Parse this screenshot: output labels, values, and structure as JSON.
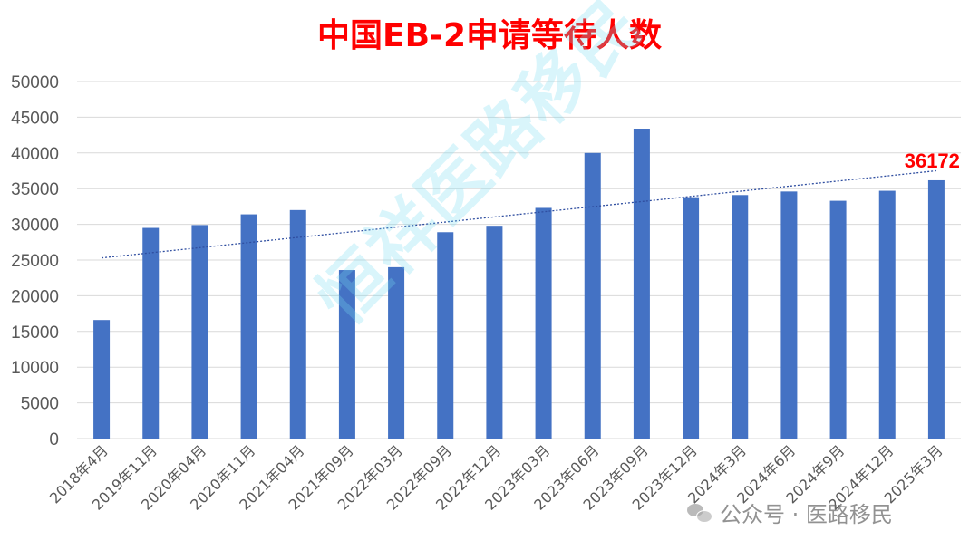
{
  "chart_data": {
    "type": "bar",
    "title": "中国EB-2申请等待人数",
    "categories": [
      "2018年4月",
      "2019年11月",
      "2020年04月",
      "2020年11月",
      "2021年04月",
      "2021年09月",
      "2022年03月",
      "2022年09月",
      "2022年12月",
      "2023年03月",
      "2023年06月",
      "2023年09月",
      "2023年12月",
      "2024年3月",
      "2024年6月",
      "2024年9月",
      "2024年12月",
      "2025年3月"
    ],
    "values": [
      16600,
      29500,
      29900,
      31400,
      32000,
      23600,
      24000,
      28900,
      29800,
      32300,
      40000,
      43400,
      33800,
      34100,
      34600,
      33300,
      34700,
      36172
    ],
    "ylim": [
      0,
      50000
    ],
    "yticks": [
      "0",
      "5000",
      "10000",
      "15000",
      "20000",
      "25000",
      "30000",
      "35000",
      "40000",
      "45000",
      "50000"
    ],
    "grid": true,
    "trendline": {
      "style": "dotted",
      "color": "#2f4ea0",
      "start": 25300,
      "end": 37500
    },
    "data_labels": [
      {
        "index": 17,
        "text": "36172"
      }
    ],
    "bar_color": "#4472c4",
    "label_color": "#ff0000"
  },
  "watermark": "恒祥医路移民",
  "wechat_brand": "公众号 · 医路移民"
}
